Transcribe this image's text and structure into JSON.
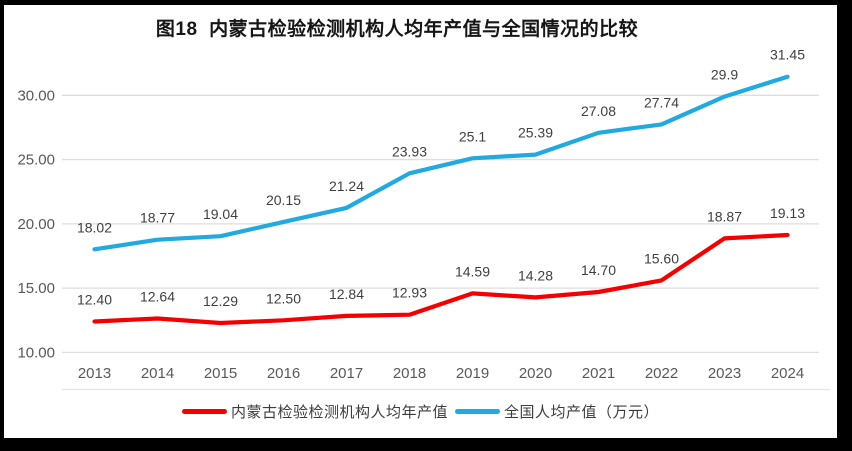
{
  "chart_data": {
    "type": "line",
    "title": "图18  内蒙古检验检测机构人均年产值与全国情况的比较",
    "categories": [
      "2013",
      "2014",
      "2015",
      "2016",
      "2017",
      "2018",
      "2019",
      "2020",
      "2021",
      "2022",
      "2023",
      "2024"
    ],
    "series": [
      {
        "name": "内蒙古检验检测机构人均年产值",
        "color": "#f40000",
        "values": [
          12.4,
          12.64,
          12.29,
          12.5,
          12.84,
          12.93,
          14.59,
          14.28,
          14.7,
          15.6,
          18.87,
          19.13
        ],
        "labels": [
          "12.40",
          "12.64",
          "12.29",
          "12.50",
          "12.84",
          "12.93",
          "14.59",
          "14.28",
          "14.70",
          "15.60",
          "18.87",
          "19.13"
        ]
      },
      {
        "name": "全国人均产值（万元）",
        "color": "#22a9df",
        "values": [
          18.02,
          18.77,
          19.04,
          20.15,
          21.24,
          23.93,
          25.1,
          25.39,
          27.08,
          27.74,
          29.9,
          31.45
        ],
        "labels": [
          "18.02",
          "18.77",
          "19.04",
          "20.15",
          "21.24",
          "23.93",
          "25.1",
          "25.39",
          "27.08",
          "27.74",
          "29.9",
          "31.45"
        ]
      }
    ],
    "y_ticks": [
      {
        "value": 10,
        "label": "10.00"
      },
      {
        "value": 15,
        "label": "15.00"
      },
      {
        "value": 20,
        "label": "20.00"
      },
      {
        "value": 25,
        "label": "25.00"
      },
      {
        "value": 30,
        "label": "30.00"
      }
    ],
    "ylim": [
      10,
      30
    ],
    "xlabel": "",
    "ylabel": "",
    "grid": "on",
    "legend_position": "bottom"
  },
  "colors": {
    "background": "#ffffff",
    "frame": "#000000",
    "gridline": "#dedede",
    "axis_text": "#595959",
    "data_label": "#3f3f3f",
    "title_text": "#161616"
  }
}
